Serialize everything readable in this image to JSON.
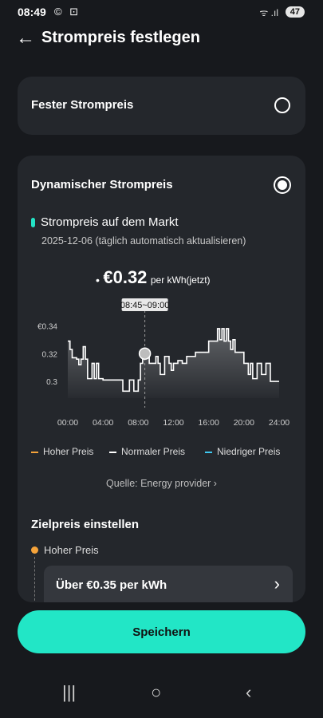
{
  "status": {
    "time": "08:49",
    "icons": "© ⊡",
    "signal": "ᯤ .ıl",
    "battery": "47"
  },
  "header": {
    "back_icon": "←",
    "title": "Strompreis festlegen"
  },
  "fixed_card": {
    "label": "Fester Strompreis"
  },
  "dynamic_card": {
    "label": "Dynamischer Strompreis",
    "market_title": "Strompreis auf dem Markt",
    "market_date": "2025-12-06 (täglich automatisch aktualisieren)",
    "price_bullet": "•",
    "price_value": "€0.32",
    "price_unit": "per kWh(jetzt)",
    "tooltip": "08:45~09:00",
    "legend": [
      {
        "label": "Hoher Preis",
        "color": "#f5a33a"
      },
      {
        "label": "Normaler Preis",
        "color": "#ffffff"
      },
      {
        "label": "Niedriger Preis",
        "color": "#3fc8f0"
      }
    ],
    "source": "Quelle: Energy provider ›",
    "target_title": "Zielpreis einstellen",
    "high_price_label": "Hoher Preis",
    "high_price_value": "Über €0.35 per kWh",
    "chevron": "›"
  },
  "save_button": "Speichern",
  "nav": {
    "recents": "|||",
    "home": "○",
    "back": "‹"
  },
  "chart_data": {
    "type": "line",
    "xlabel": "",
    "ylabel": "",
    "x_ticks": [
      "00:00",
      "04:00",
      "08:00",
      "12:00",
      "16:00",
      "20:00",
      "24:00"
    ],
    "y_ticks": [
      "€0.34",
      "0.32",
      "0.3"
    ],
    "ylim": [
      0.288,
      0.35
    ],
    "xlim": [
      0,
      24
    ],
    "highlight": {
      "x": 8.75,
      "y": 0.32,
      "label": "08:45~09:00"
    },
    "series": [
      {
        "step": true,
        "points": [
          [
            0.0,
            0.329
          ],
          [
            0.25,
            0.323
          ],
          [
            0.5,
            0.317
          ],
          [
            1.0,
            0.316
          ],
          [
            1.25,
            0.312
          ],
          [
            1.5,
            0.316
          ],
          [
            1.75,
            0.325
          ],
          [
            2.0,
            0.316
          ],
          [
            2.25,
            0.302
          ],
          [
            2.75,
            0.313
          ],
          [
            3.0,
            0.302
          ],
          [
            3.25,
            0.313
          ],
          [
            3.5,
            0.302
          ],
          [
            4.0,
            0.301
          ],
          [
            5.0,
            0.301
          ],
          [
            5.5,
            0.301
          ],
          [
            6.0,
            0.301
          ],
          [
            6.25,
            0.293
          ],
          [
            7.0,
            0.301
          ],
          [
            7.5,
            0.293
          ],
          [
            8.0,
            0.301
          ],
          [
            8.25,
            0.313
          ],
          [
            8.5,
            0.317
          ],
          [
            8.75,
            0.32
          ],
          [
            9.0,
            0.318
          ],
          [
            9.25,
            0.313
          ],
          [
            9.5,
            0.313
          ],
          [
            10.0,
            0.318
          ],
          [
            10.25,
            0.313
          ],
          [
            10.5,
            0.305
          ],
          [
            11.0,
            0.318
          ],
          [
            11.5,
            0.313
          ],
          [
            11.75,
            0.308
          ],
          [
            12.0,
            0.313
          ],
          [
            12.5,
            0.315
          ],
          [
            13.0,
            0.313
          ],
          [
            13.5,
            0.318
          ],
          [
            14.0,
            0.318
          ],
          [
            14.5,
            0.321
          ],
          [
            15.0,
            0.321
          ],
          [
            15.5,
            0.321
          ],
          [
            16.0,
            0.329
          ],
          [
            16.5,
            0.329
          ],
          [
            17.0,
            0.338
          ],
          [
            17.25,
            0.33
          ],
          [
            17.5,
            0.338
          ],
          [
            17.75,
            0.329
          ],
          [
            18.0,
            0.338
          ],
          [
            18.25,
            0.329
          ],
          [
            18.5,
            0.323
          ],
          [
            18.75,
            0.33
          ],
          [
            19.0,
            0.321
          ],
          [
            19.5,
            0.321
          ],
          [
            20.0,
            0.313
          ],
          [
            20.5,
            0.305
          ],
          [
            20.75,
            0.313
          ],
          [
            21.0,
            0.302
          ],
          [
            21.5,
            0.313
          ],
          [
            22.0,
            0.305
          ],
          [
            22.5,
            0.313
          ],
          [
            23.0,
            0.3
          ],
          [
            24.0,
            0.3
          ]
        ]
      }
    ]
  }
}
